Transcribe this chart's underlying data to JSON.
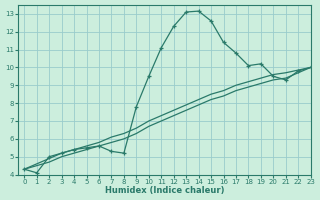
{
  "xlabel": "Humidex (Indice chaleur)",
  "bg_color": "#cceedd",
  "grid_color": "#99cccc",
  "line_color": "#2a7a6a",
  "xlim": [
    -0.5,
    23
  ],
  "ylim": [
    4,
    13.5
  ],
  "xticks": [
    0,
    1,
    2,
    3,
    4,
    5,
    6,
    7,
    8,
    9,
    10,
    11,
    12,
    13,
    14,
    15,
    16,
    17,
    18,
    19,
    20,
    21,
    22,
    23
  ],
  "yticks": [
    4,
    5,
    6,
    7,
    8,
    9,
    10,
    11,
    12,
    13
  ],
  "line1_x": [
    0,
    1,
    2,
    3,
    4,
    5,
    6,
    7,
    8,
    9,
    10,
    11,
    12,
    13,
    14,
    15,
    16,
    17,
    18,
    19,
    20,
    21,
    22,
    23
  ],
  "line1_y": [
    4.3,
    4.1,
    5.0,
    5.2,
    5.4,
    5.5,
    5.6,
    5.3,
    5.2,
    7.8,
    9.5,
    11.1,
    12.3,
    13.1,
    13.15,
    12.6,
    11.4,
    10.8,
    10.1,
    10.2,
    9.5,
    9.3,
    9.8,
    10.0
  ],
  "line2_x": [
    0,
    1,
    2,
    3,
    4,
    5,
    6,
    7,
    8,
    9,
    10,
    11,
    12,
    13,
    14,
    15,
    16,
    17,
    18,
    19,
    20,
    21,
    22,
    23
  ],
  "line2_y": [
    4.3,
    4.6,
    4.9,
    5.2,
    5.4,
    5.6,
    5.8,
    6.1,
    6.3,
    6.6,
    7.0,
    7.3,
    7.6,
    7.9,
    8.2,
    8.5,
    8.7,
    9.0,
    9.2,
    9.4,
    9.6,
    9.7,
    9.85,
    10.0
  ],
  "line3_x": [
    0,
    1,
    2,
    3,
    4,
    5,
    6,
    7,
    8,
    9,
    10,
    11,
    12,
    13,
    14,
    15,
    16,
    17,
    18,
    19,
    20,
    21,
    22,
    23
  ],
  "line3_y": [
    4.3,
    4.5,
    4.7,
    5.0,
    5.2,
    5.4,
    5.6,
    5.8,
    6.0,
    6.3,
    6.7,
    7.0,
    7.3,
    7.6,
    7.9,
    8.2,
    8.4,
    8.7,
    8.9,
    9.1,
    9.3,
    9.4,
    9.7,
    10.0
  ]
}
